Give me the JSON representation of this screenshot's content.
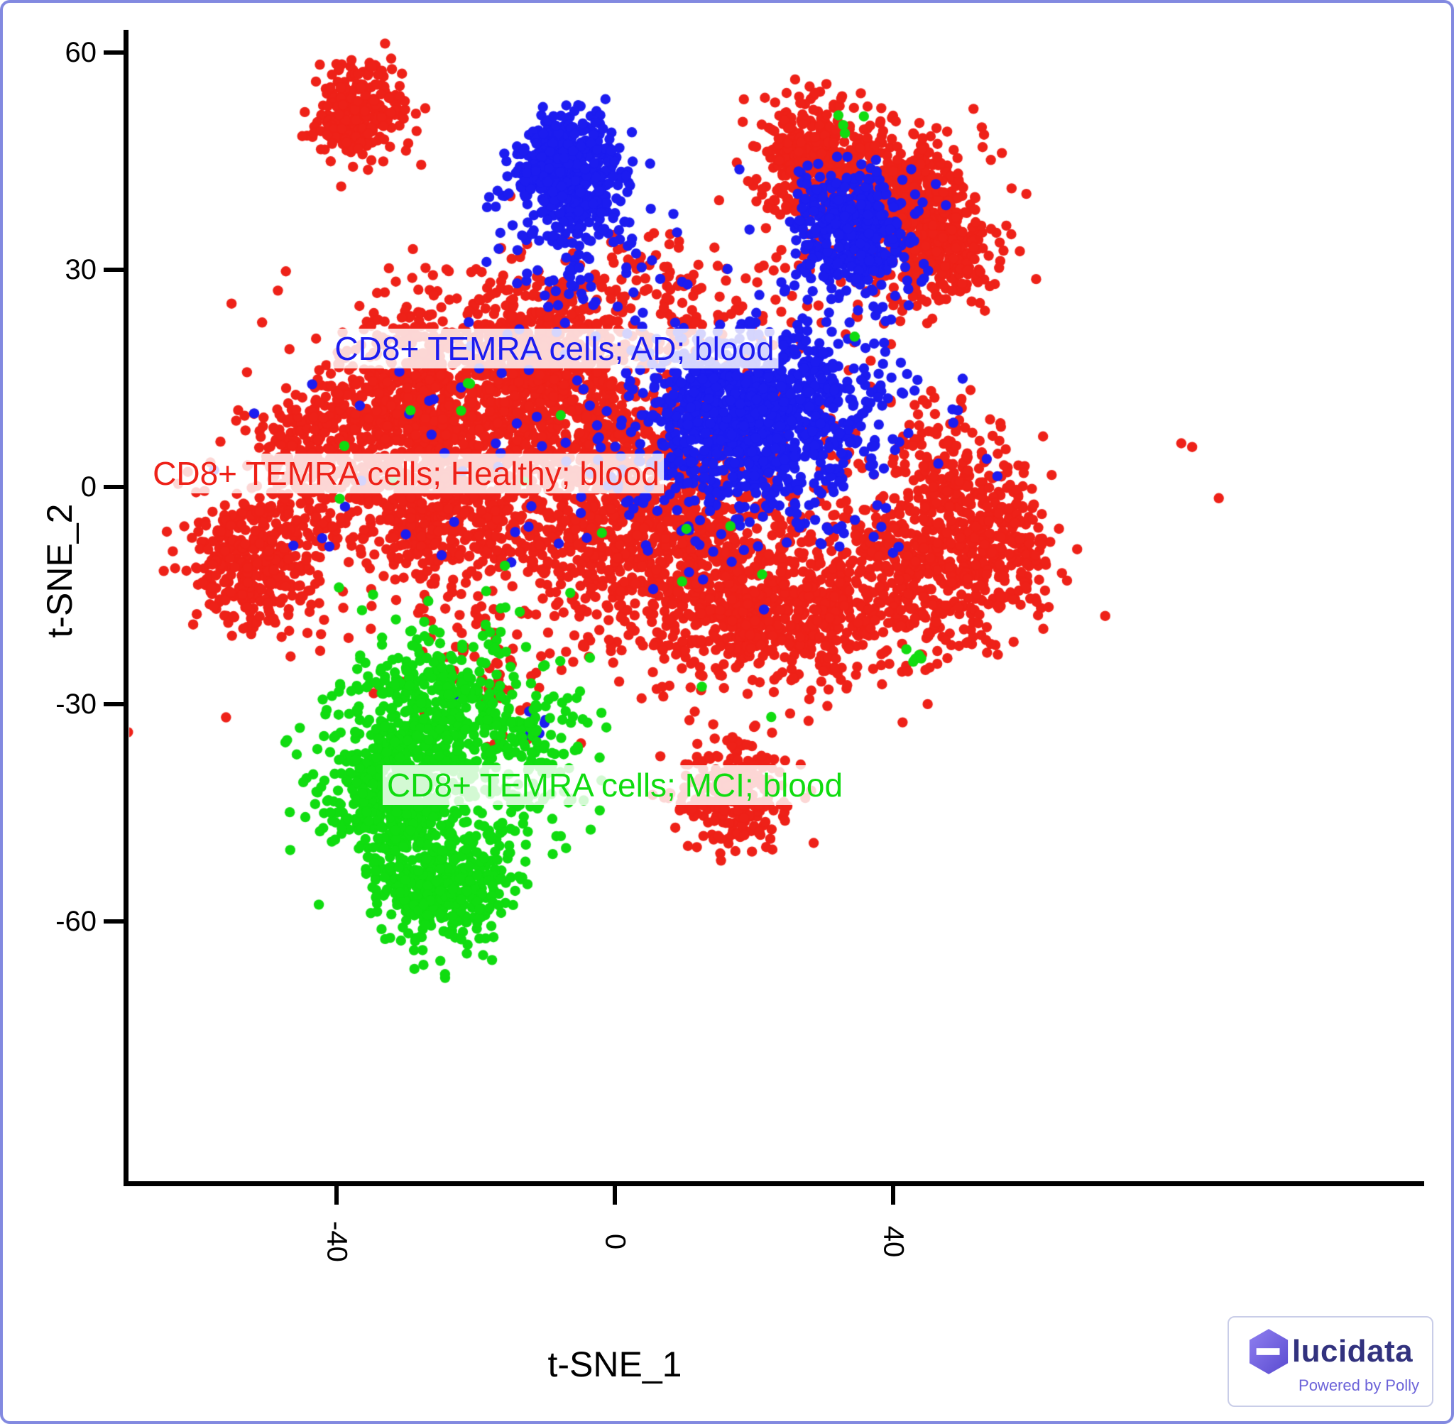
{
  "figure": {
    "border_color": "#8289e0",
    "background": "#ffffff"
  },
  "chart_data": {
    "type": "scatter",
    "title": "",
    "xlabel": "t-SNE_1",
    "ylabel": "t-SNE_2",
    "xlim": [
      -70,
      116
    ],
    "ylim": [
      -96,
      63
    ],
    "grid": false,
    "legend": "none",
    "xticks": [
      "-40",
      "0",
      "40"
    ],
    "yticks": [
      "60",
      "30",
      "0",
      "-30",
      "-60"
    ],
    "cluster_format": "[n_points, center_x, center_y, sd_x, sd_y] in t-SNE data units",
    "series": [
      {
        "name": "CD8+ TEMRA cells; Healthy; blood",
        "condition": "Healthy",
        "color": "#ee2118",
        "clusters": [
          [
            260,
            -37,
            52,
            3.5,
            3.2
          ],
          [
            300,
            28,
            46,
            3.8,
            3.8
          ],
          [
            350,
            41,
            40,
            4.5,
            4.5
          ],
          [
            240,
            47,
            32,
            3.8,
            3.8
          ],
          [
            220,
            37,
            39,
            8,
            7
          ],
          [
            380,
            -52,
            -10,
            4.5,
            4.5
          ],
          [
            280,
            -43,
            4,
            4.5,
            4.5
          ],
          [
            400,
            -30,
            12,
            6,
            5
          ],
          [
            480,
            -12,
            15,
            7,
            5
          ],
          [
            560,
            -5,
            3,
            10,
            7
          ],
          [
            480,
            -25,
            -3,
            8,
            6
          ],
          [
            650,
            10,
            -10,
            10,
            7
          ],
          [
            420,
            25,
            -18,
            8,
            5
          ],
          [
            470,
            45,
            -12,
            7,
            6
          ],
          [
            180,
            55,
            -7,
            4,
            5
          ],
          [
            550,
            0,
            0,
            26,
            13
          ],
          [
            240,
            -15,
            22,
            12,
            4.5
          ],
          [
            140,
            5,
            25,
            11,
            5
          ],
          [
            150,
            48,
            2,
            4,
            5
          ],
          [
            280,
            17,
            -42,
            4,
            3.8
          ],
          [
            60,
            -20,
            -25,
            6,
            5
          ]
        ]
      },
      {
        "name": "CD8+ TEMRA cells; AD; blood",
        "condition": "AD",
        "color": "#1c1cf0",
        "clusters": [
          [
            450,
            -7,
            44,
            3.5,
            3.8
          ],
          [
            150,
            -6,
            35,
            5,
            6
          ],
          [
            420,
            34,
            35,
            4.2,
            4.2
          ],
          [
            850,
            21,
            9,
            9,
            7
          ],
          [
            280,
            17,
            13,
            5,
            4
          ],
          [
            110,
            2,
            6,
            24,
            12
          ],
          [
            8,
            -12,
            -33,
            2,
            2
          ]
        ]
      },
      {
        "name": "CD8+ TEMRA cells; MCI; blood",
        "condition": "MCI",
        "color": "#10dc10",
        "clusters": [
          [
            500,
            -32,
            -42,
            5,
            5.5
          ],
          [
            400,
            -24,
            -55,
            4.5,
            3.8
          ],
          [
            330,
            -26,
            -30,
            6.5,
            5.5
          ],
          [
            240,
            -15,
            -38,
            5.5,
            7
          ],
          [
            25,
            -5,
            -8,
            28,
            15
          ],
          [
            6,
            43,
            -24,
            1,
            1
          ],
          [
            4,
            34,
            51,
            1.5,
            1.5
          ]
        ]
      }
    ],
    "annotations": [
      {
        "text": "CD8+ TEMRA cells; AD; blood",
        "color": "#1c1cf0",
        "x": -8.7,
        "y": 19.1
      },
      {
        "text": "CD8+ TEMRA cells; Healthy; blood",
        "color": "#ee2118",
        "x": -30.0,
        "y": 1.9
      },
      {
        "text": "CD8+ TEMRA cells; MCI; blood",
        "color": "#10dc10",
        "x": 0.0,
        "y": -41.2
      }
    ]
  },
  "branding": {
    "wordmark": "lucidata",
    "tagline": "Powered by Polly",
    "wordmark_color": "#32327e",
    "tagline_color": "#6c63d9",
    "hex_color_light": "#8f7ff0",
    "hex_color_dark": "#5a4bd0"
  }
}
